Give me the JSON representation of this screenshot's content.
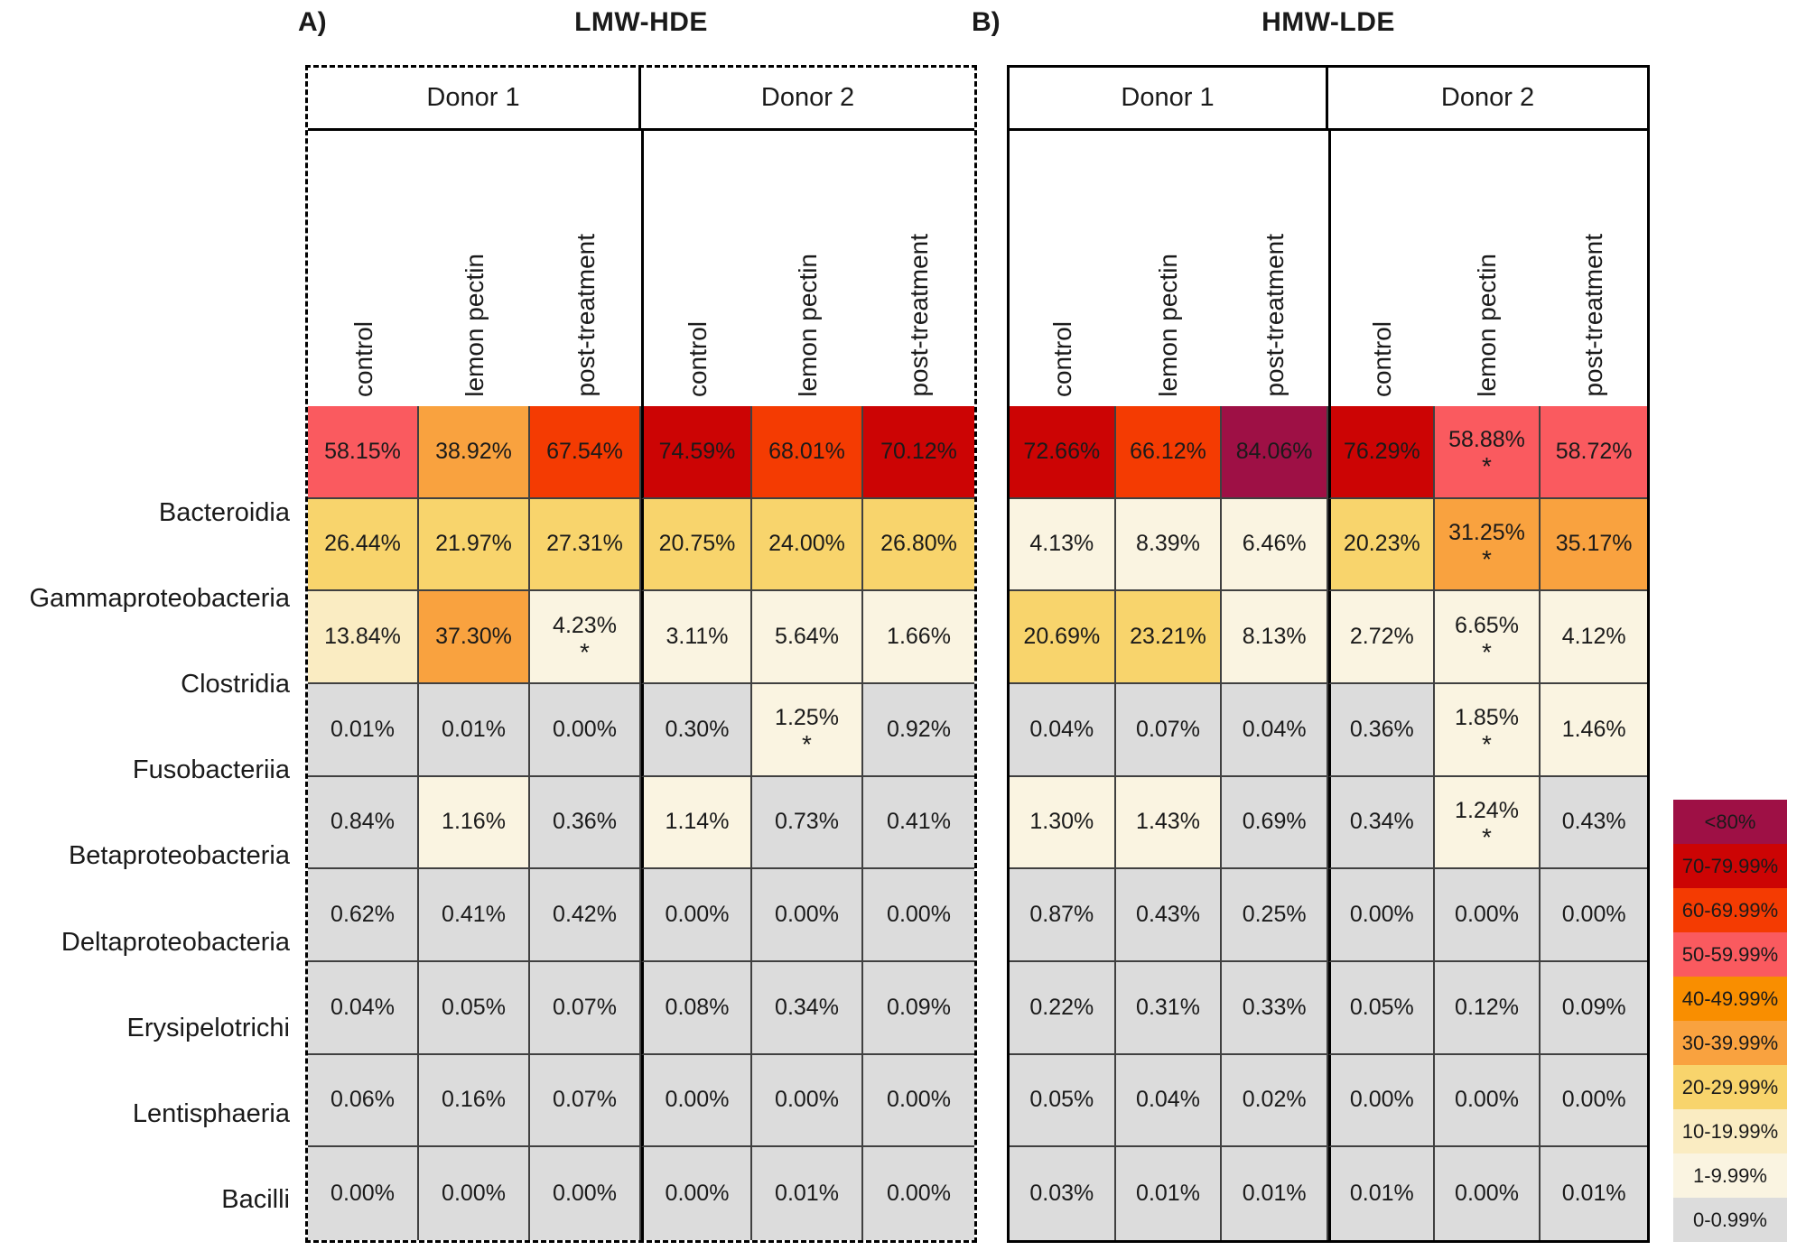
{
  "classes": [
    "Bacteroidia",
    "Gammaproteobacteria",
    "Clostridia",
    "Fusobacteriia",
    "Betaproteobacteria",
    "Deltaproteobacteria",
    "Erysipelotrichi",
    "Lentisphaeria",
    "Bacilli"
  ],
  "conditions": [
    "control",
    "lemon pectin",
    "post-treatment",
    "control",
    "lemon pectin",
    "post-treatment"
  ],
  "donors": [
    "Donor 1",
    "Donor 2"
  ],
  "panels": [
    {
      "label": "A)",
      "title": "LMW-HDE",
      "frame": "dashed",
      "rows": [
        [
          "58.15%",
          "38.92%",
          "67.54%",
          "74.59%",
          "68.01%",
          "70.12%"
        ],
        [
          "26.44%",
          "21.97%",
          "27.31%",
          "20.75%",
          "24.00%",
          "26.80%"
        ],
        [
          "13.84%",
          "37.30%",
          "4.23%*",
          "3.11%",
          "5.64%",
          "1.66%"
        ],
        [
          "0.01%",
          "0.01%",
          "0.00%",
          "0.30%",
          "1.25%*",
          "0.92%"
        ],
        [
          "0.84%",
          "1.16%",
          "0.36%",
          "1.14%",
          "0.73%",
          "0.41%"
        ],
        [
          "0.62%",
          "0.41%",
          "0.42%",
          "0.00%",
          "0.00%",
          "0.00%"
        ],
        [
          "0.04%",
          "0.05%",
          "0.07%",
          "0.08%",
          "0.34%",
          "0.09%"
        ],
        [
          "0.06%",
          "0.16%",
          "0.07%",
          "0.00%",
          "0.00%",
          "0.00%"
        ],
        [
          "0.00%",
          "0.00%",
          "0.00%",
          "0.00%",
          "0.01%",
          "0.00%"
        ]
      ]
    },
    {
      "label": "B)",
      "title": "HMW-LDE",
      "frame": "solid",
      "rows": [
        [
          "72.66%",
          "66.12%",
          "84.06%",
          "76.29%",
          "58.88%*",
          "58.72%"
        ],
        [
          "4.13%",
          "8.39%",
          "6.46%",
          "20.23%",
          "31.25%*",
          "35.17%"
        ],
        [
          "20.69%",
          "23.21%",
          "8.13%",
          "2.72%",
          "6.65%*",
          "4.12%"
        ],
        [
          "0.04%",
          "0.07%",
          "0.04%",
          "0.36%",
          "1.85%*",
          "1.46%"
        ],
        [
          "1.30%",
          "1.43%",
          "0.69%",
          "0.34%",
          "1.24%*",
          "0.43%"
        ],
        [
          "0.87%",
          "0.43%",
          "0.25%",
          "0.00%",
          "0.00%",
          "0.00%"
        ],
        [
          "0.22%",
          "0.31%",
          "0.33%",
          "0.05%",
          "0.12%",
          "0.09%"
        ],
        [
          "0.05%",
          "0.04%",
          "0.02%",
          "0.00%",
          "0.00%",
          "0.00%"
        ],
        [
          "0.03%",
          "0.01%",
          "0.01%",
          "0.01%",
          "0.00%",
          "0.01%"
        ]
      ]
    }
  ],
  "legend": {
    "entries": [
      {
        "label": "<80%",
        "min": 80,
        "color": "#9E1045"
      },
      {
        "label": "70-79.99%",
        "min": 70,
        "color": "#CC0404"
      },
      {
        "label": "60-69.99%",
        "min": 60,
        "color": "#F43B02"
      },
      {
        "label": "50-59.99%",
        "min": 50,
        "color": "#FA5A5F"
      },
      {
        "label": "40-49.99%",
        "min": 40,
        "color": "#F98E00"
      },
      {
        "label": "30-39.99%",
        "min": 30,
        "color": "#F9A23F"
      },
      {
        "label": "20-29.99%",
        "min": 20,
        "color": "#F8D46C"
      },
      {
        "label": "10-19.99%",
        "min": 10,
        "color": "#FAECC2"
      },
      {
        "label": "1-9.99%",
        "min": 1,
        "color": "#FAF4E1"
      },
      {
        "label": "0-0.99%",
        "min": 0,
        "color": "#DCDCDC"
      }
    ]
  },
  "chart_data": [
    {
      "type": "heatmap",
      "title": "LMW-HDE",
      "rows": [
        "Bacteroidia",
        "Gammaproteobacteria",
        "Clostridia",
        "Fusobacteriia",
        "Betaproteobacteria",
        "Deltaproteobacteria",
        "Erysipelotrichi",
        "Lentisphaeria",
        "Bacilli"
      ],
      "columns": [
        "Donor 1 control",
        "Donor 1 lemon pectin",
        "Donor 1 post-treatment",
        "Donor 2 control",
        "Donor 2 lemon pectin",
        "Donor 2 post-treatment"
      ],
      "values_percent": [
        [
          58.15,
          38.92,
          67.54,
          74.59,
          68.01,
          70.12
        ],
        [
          26.44,
          21.97,
          27.31,
          20.75,
          24.0,
          26.8
        ],
        [
          13.84,
          37.3,
          4.23,
          3.11,
          5.64,
          1.66
        ],
        [
          0.01,
          0.01,
          0.0,
          0.3,
          1.25,
          0.92
        ],
        [
          0.84,
          1.16,
          0.36,
          1.14,
          0.73,
          0.41
        ],
        [
          0.62,
          0.41,
          0.42,
          0.0,
          0.0,
          0.0
        ],
        [
          0.04,
          0.05,
          0.07,
          0.08,
          0.34,
          0.09
        ],
        [
          0.06,
          0.16,
          0.07,
          0.0,
          0.0,
          0.0
        ],
        [
          0.0,
          0.0,
          0.0,
          0.0,
          0.01,
          0.0
        ]
      ],
      "significant_cells": [
        [
          "Clostridia",
          "Donor 1 post-treatment"
        ],
        [
          "Fusobacteriia",
          "Donor 2 lemon pectin"
        ]
      ],
      "legend_position": "right",
      "color_bins": [
        "<80%",
        "70-79.99%",
        "60-69.99%",
        "50-59.99%",
        "40-49.99%",
        "30-39.99%",
        "20-29.99%",
        "10-19.99%",
        "1-9.99%",
        "0-0.99%"
      ]
    },
    {
      "type": "heatmap",
      "title": "HMW-LDE",
      "rows": [
        "Bacteroidia",
        "Gammaproteobacteria",
        "Clostridia",
        "Fusobacteriia",
        "Betaproteobacteria",
        "Deltaproteobacteria",
        "Erysipelotrichi",
        "Lentisphaeria",
        "Bacilli"
      ],
      "columns": [
        "Donor 1 control",
        "Donor 1 lemon pectin",
        "Donor 1 post-treatment",
        "Donor 2 control",
        "Donor 2 lemon pectin",
        "Donor 2 post-treatment"
      ],
      "values_percent": [
        [
          72.66,
          66.12,
          84.06,
          76.29,
          58.88,
          58.72
        ],
        [
          4.13,
          8.39,
          6.46,
          20.23,
          31.25,
          35.17
        ],
        [
          20.69,
          23.21,
          8.13,
          2.72,
          6.65,
          4.12
        ],
        [
          0.04,
          0.07,
          0.04,
          0.36,
          1.85,
          1.46
        ],
        [
          1.3,
          1.43,
          0.69,
          0.34,
          1.24,
          0.43
        ],
        [
          0.87,
          0.43,
          0.25,
          0.0,
          0.0,
          0.0
        ],
        [
          0.22,
          0.31,
          0.33,
          0.05,
          0.12,
          0.09
        ],
        [
          0.05,
          0.04,
          0.02,
          0.0,
          0.0,
          0.0
        ],
        [
          0.03,
          0.01,
          0.01,
          0.01,
          0.0,
          0.01
        ]
      ],
      "significant_cells": [
        [
          "Bacteroidia",
          "Donor 2 lemon pectin"
        ],
        [
          "Gammaproteobacteria",
          "Donor 2 lemon pectin"
        ],
        [
          "Clostridia",
          "Donor 2 lemon pectin"
        ],
        [
          "Fusobacteriia",
          "Donor 2 lemon pectin"
        ],
        [
          "Betaproteobacteria",
          "Donor 2 lemon pectin"
        ]
      ],
      "legend_position": "right",
      "color_bins": [
        "<80%",
        "70-79.99%",
        "60-69.99%",
        "50-59.99%",
        "40-49.99%",
        "30-39.99%",
        "20-29.99%",
        "10-19.99%",
        "1-9.99%",
        "0-0.99%"
      ]
    }
  ]
}
